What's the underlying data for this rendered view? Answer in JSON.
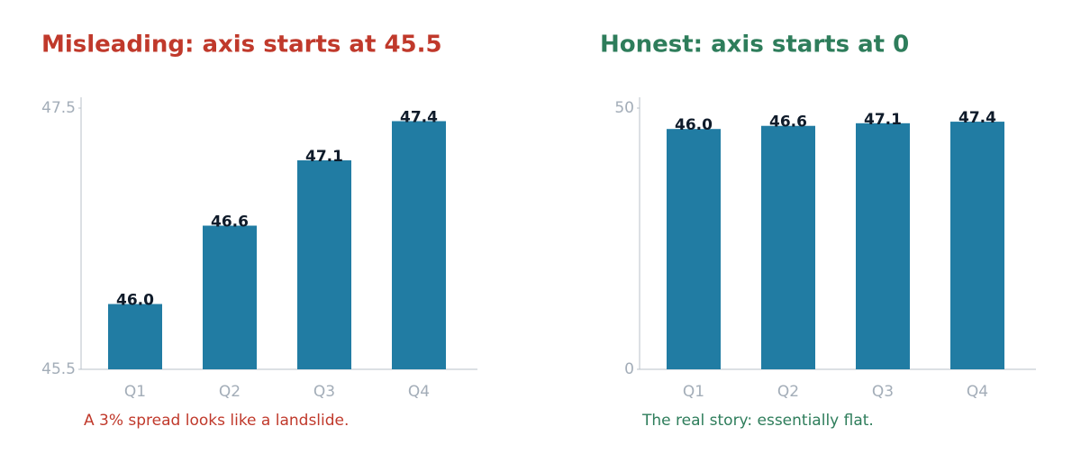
{
  "chart_data": [
    {
      "type": "bar",
      "title": "Misleading: axis starts at 45.5",
      "title_color": "#c0392b",
      "categories": [
        "Q1",
        "Q2",
        "Q3",
        "Q4"
      ],
      "values": [
        46.0,
        46.6,
        47.1,
        47.4
      ],
      "value_labels": [
        "46.0",
        "46.6",
        "47.1",
        "47.4"
      ],
      "color": "#217ca3",
      "ylim": [
        45.5,
        47.5
      ],
      "yticks": [
        45.5,
        47.5
      ],
      "annotation": "A 3% spread looks like a landslide.",
      "annotation_color": "#c0392b"
    },
    {
      "type": "bar",
      "title": "Honest: axis starts at 0",
      "title_color": "#2e7d5b",
      "categories": [
        "Q1",
        "Q2",
        "Q3",
        "Q4"
      ],
      "values": [
        46.0,
        46.6,
        47.1,
        47.4
      ],
      "value_labels": [
        "46.0",
        "46.6",
        "47.1",
        "47.4"
      ],
      "color": "#217ca3",
      "ylim": [
        0,
        50
      ],
      "yticks": [
        0,
        50
      ],
      "annotation": "The real story: essentially flat.",
      "annotation_color": "#2e7d5b"
    }
  ]
}
